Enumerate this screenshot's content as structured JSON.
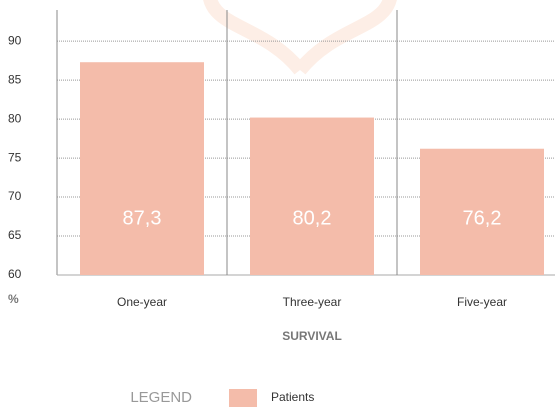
{
  "chart_data": {
    "type": "bar",
    "x_label": "SURVIVAL",
    "y_label": "%",
    "legend_title": "LEGEND",
    "categories": [
      "One-year",
      "Three-year",
      "Five-year"
    ],
    "series": [
      {
        "name": "Patients",
        "color": "#f4bcaa",
        "values": [
          87.3,
          80.2,
          76.2
        ],
        "value_labels": [
          "87,3",
          "80,2",
          "76,2"
        ]
      }
    ],
    "ylim": [
      60,
      94
    ],
    "yticks": [
      60,
      65,
      70,
      75,
      80,
      85,
      90
    ],
    "grid": true
  }
}
